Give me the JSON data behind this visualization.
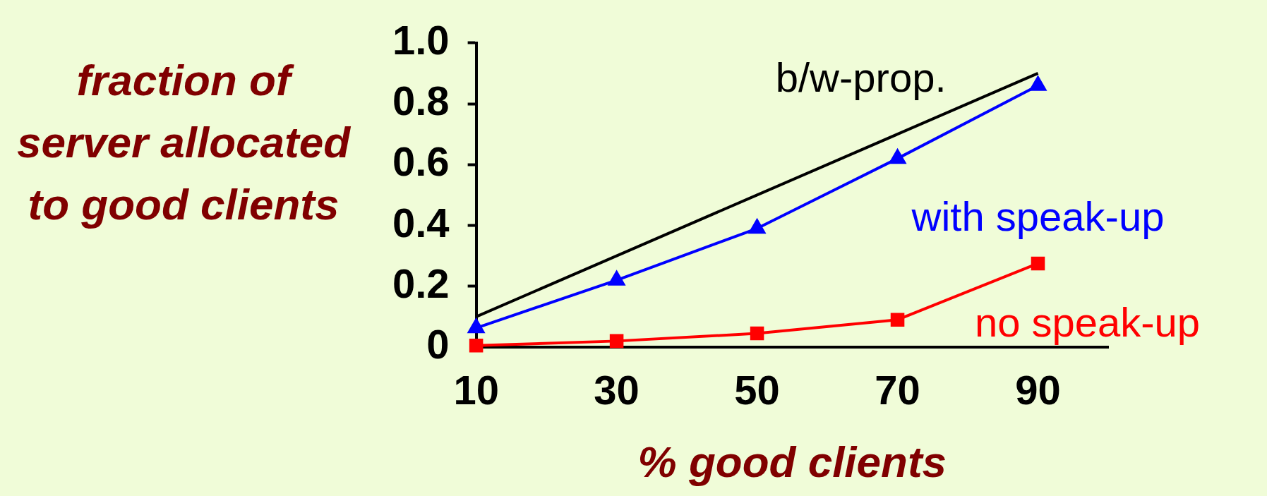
{
  "chart_data": {
    "type": "line",
    "xlabel": "% good clients",
    "ylabel": "fraction of server allocated to good clients",
    "x": [
      10,
      30,
      50,
      70,
      90
    ],
    "xlim": [
      10,
      100
    ],
    "xticks": [
      10,
      30,
      50,
      70,
      90
    ],
    "ylim": [
      0,
      1
    ],
    "yticks": [
      0,
      {
        "value": 0.2,
        "label": "0.2"
      },
      {
        "value": 0.4,
        "label": "0.4"
      },
      {
        "value": 0.6,
        "label": "0.6"
      },
      {
        "value": 0.8,
        "label": "0.8"
      },
      {
        "value": 1,
        "label": "1.0"
      }
    ],
    "series": [
      {
        "name": "b/w-prop.",
        "color": "#000000",
        "marker": "none",
        "values": [
          0.1,
          0.3,
          0.5,
          0.7,
          0.9
        ]
      },
      {
        "name": "with speak-up",
        "color": "#0000ff",
        "marker": "triangle",
        "values": [
          0.063,
          0.22,
          0.39,
          0.62,
          0.86
        ]
      },
      {
        "name": "no speak-up",
        "color": "#ff0000",
        "marker": "square",
        "values": [
          0.005,
          0.02,
          0.045,
          0.09,
          0.275
        ]
      }
    ],
    "legend": false,
    "grid": false
  }
}
